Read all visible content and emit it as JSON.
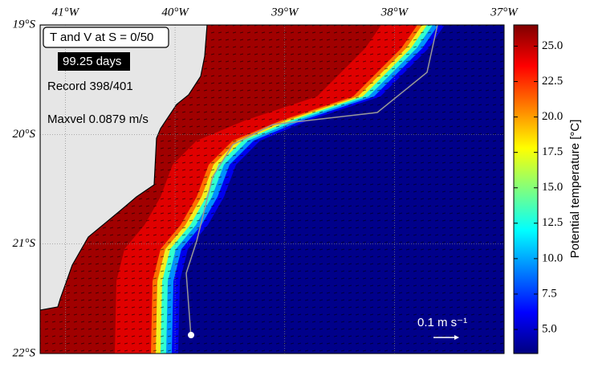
{
  "chart_data": {
    "type": "map",
    "xlim": [
      -41.23,
      -37
    ],
    "ylim": [
      -22,
      -19
    ],
    "xticks": [
      {
        "value": -41,
        "label": "41°W"
      },
      {
        "value": -40,
        "label": "40°W"
      },
      {
        "value": -39,
        "label": "39°W"
      },
      {
        "value": -38,
        "label": "38°W"
      },
      {
        "value": -37,
        "label": "37°W"
      }
    ],
    "yticks": [
      {
        "value": -19,
        "label": "19°S"
      },
      {
        "value": -20,
        "label": "20°S"
      },
      {
        "value": -21,
        "label": "21°S"
      },
      {
        "value": -22,
        "label": "22°S"
      }
    ],
    "grid": true,
    "colorbar": {
      "label": "Potential temperature [°C]",
      "clim": [
        3.3,
        26.5
      ],
      "ticks": [
        {
          "value": 5,
          "label": "5.0"
        },
        {
          "value": 7.5,
          "label": "7.5"
        },
        {
          "value": 10,
          "label": "10.0"
        },
        {
          "value": 12.5,
          "label": "12.5"
        },
        {
          "value": 15,
          "label": "15.0"
        },
        {
          "value": 17.5,
          "label": "17.5"
        },
        {
          "value": 20,
          "label": "20.0"
        },
        {
          "value": 22.5,
          "label": "22.5"
        },
        {
          "value": 25,
          "label": "25.0"
        }
      ],
      "colormap": [
        "#00007f",
        "#0000ff",
        "#007fff",
        "#00ffff",
        "#7fff7f",
        "#ffff00",
        "#ff7f00",
        "#ff0000",
        "#7f0000"
      ]
    },
    "annotations": {
      "title": "T and V at S = 0/50",
      "time": "99.25 days",
      "record": "Record 398/401",
      "maxvel": "Maxvel 0.0879 m/s",
      "scale_label": "0.1 m s⁻¹"
    }
  }
}
